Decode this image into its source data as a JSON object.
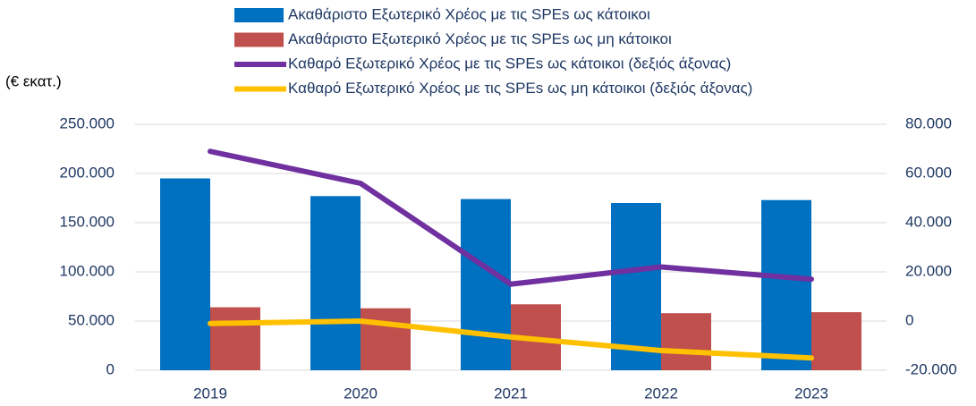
{
  "chart_data": {
    "type": "bar_line",
    "unit_label": "(€ εκατ.)",
    "categories": [
      "2019",
      "2020",
      "2021",
      "2022",
      "2023"
    ],
    "series": [
      {
        "name": "Ακαθάριστο Εξωτερικό Χρέος με τις SPEs ως κάτοικοι",
        "type": "bar",
        "color": "#0070c0",
        "values": [
          195000,
          177000,
          174000,
          170000,
          173000
        ]
      },
      {
        "name": "Ακαθάριστο Εξωτερικό Χρέος με τις SPEs ως μη κάτοικοι",
        "type": "bar",
        "color": "#c0504d",
        "values": [
          64000,
          63000,
          67000,
          58000,
          59000
        ]
      },
      {
        "name": "Καθαρό Εξωτερικό Χρέος με τις SPEs ως κάτοικοι (δεξιός άξονας)",
        "type": "line",
        "axis": "y2",
        "color": "#7030a0",
        "values": [
          69000,
          56000,
          15000,
          22000,
          17000
        ]
      },
      {
        "name": "Καθαρό Εξωτερικό Χρέος με τις SPEs ως μη κάτοικοι (δεξιός άξονας)",
        "type": "line",
        "axis": "y2",
        "color": "#ffc000",
        "values": [
          -1000,
          0,
          -6500,
          -12000,
          -15000
        ]
      }
    ],
    "ylim": [
      0,
      250000
    ],
    "yticks": [
      0,
      {
        "value": 50000,
        "label": "50.000"
      },
      {
        "value": 100000,
        "label": "100.000"
      },
      {
        "value": 150000,
        "label": "150.000"
      },
      {
        "value": 200000,
        "label": "200.000"
      },
      {
        "value": 250000,
        "label": "250.000"
      }
    ],
    "y2lim": [
      -20000,
      80000
    ],
    "y2ticks": [
      {
        "value": -20000,
        "label": "-20.000"
      },
      0,
      {
        "value": 20000,
        "label": "20.000"
      },
      {
        "value": 40000,
        "label": "40.000"
      },
      {
        "value": 60000,
        "label": "60.000"
      },
      {
        "value": 80000,
        "label": "80.000"
      }
    ],
    "grid": true
  }
}
